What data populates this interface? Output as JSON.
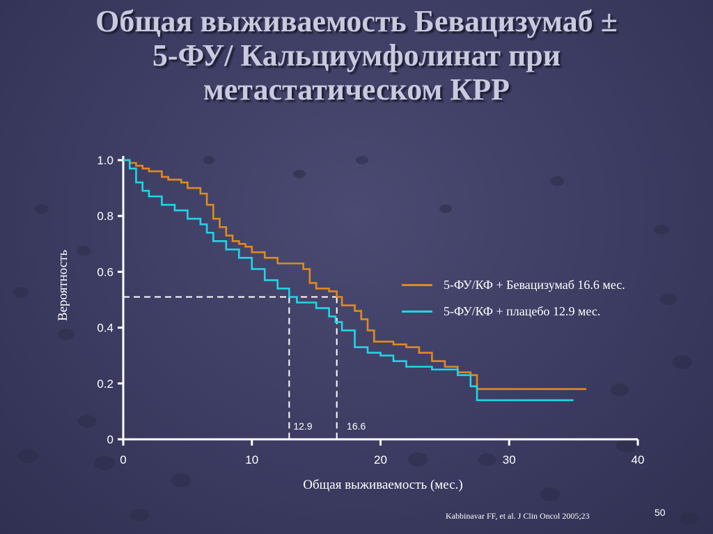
{
  "slide": {
    "title_lines": [
      "Общая выживаемость Бевацизумаб ±",
      "5-ФУ/ Кальциумфолинат при",
      "метастатическом КРР"
    ],
    "citation": "Kabbinavar FF, et al. J Clin Oncol 2005;23",
    "page_number": "50"
  },
  "chart_data": {
    "type": "line",
    "title": "",
    "xlabel": "Общая выживаемость (мес.)",
    "ylabel": "Вероятность",
    "xlim": [
      0,
      40
    ],
    "ylim": [
      0,
      1.0
    ],
    "x_ticks": [
      "0",
      "10",
      "20",
      "30",
      "40"
    ],
    "y_ticks": [
      "0",
      "0.2",
      "0.4",
      "0.6",
      "0.8",
      "1.0"
    ],
    "grid": false,
    "legend_position": "right",
    "series": [
      {
        "name": "5-ФУ/КФ + Бевацизумаб 16.6 мес.",
        "color": "#e08a1e",
        "median": 16.6,
        "x": [
          0,
          0.5,
          1,
          1.5,
          2,
          3,
          3.5,
          4.5,
          5,
          6,
          6.5,
          7,
          7.5,
          8,
          8.5,
          9,
          9.5,
          10,
          11,
          12,
          13,
          14,
          14.5,
          15,
          16,
          16.6,
          17,
          18,
          18.5,
          19,
          19.5,
          20,
          21,
          22,
          23,
          24,
          25,
          26,
          27,
          27.5,
          28,
          36
        ],
        "y": [
          1.0,
          0.99,
          0.98,
          0.97,
          0.96,
          0.94,
          0.93,
          0.92,
          0.9,
          0.88,
          0.84,
          0.79,
          0.76,
          0.73,
          0.71,
          0.7,
          0.69,
          0.67,
          0.65,
          0.63,
          0.63,
          0.61,
          0.56,
          0.54,
          0.53,
          0.51,
          0.48,
          0.46,
          0.43,
          0.39,
          0.35,
          0.35,
          0.34,
          0.33,
          0.31,
          0.28,
          0.26,
          0.24,
          0.23,
          0.18,
          0.18,
          0.18
        ]
      },
      {
        "name": "5-ФУ/КФ + плацебо 12.9 мес.",
        "color": "#1fd6e6",
        "median": 12.9,
        "x": [
          0,
          0.5,
          1,
          1.5,
          2,
          3,
          4,
          5,
          6,
          6.5,
          7,
          8,
          9,
          10,
          11,
          12,
          12.9,
          13.5,
          15,
          16,
          16.5,
          17,
          18,
          19,
          20,
          21,
          22,
          24,
          26,
          27,
          27.5,
          35
        ],
        "y": [
          1.0,
          0.97,
          0.92,
          0.89,
          0.87,
          0.84,
          0.82,
          0.79,
          0.77,
          0.74,
          0.71,
          0.68,
          0.65,
          0.61,
          0.57,
          0.54,
          0.51,
          0.49,
          0.47,
          0.44,
          0.42,
          0.39,
          0.33,
          0.31,
          0.3,
          0.28,
          0.26,
          0.25,
          0.23,
          0.19,
          0.14,
          0.14
        ]
      }
    ],
    "median_line_y": 0.51,
    "annotations": [
      "12.9",
      "16.6"
    ]
  }
}
